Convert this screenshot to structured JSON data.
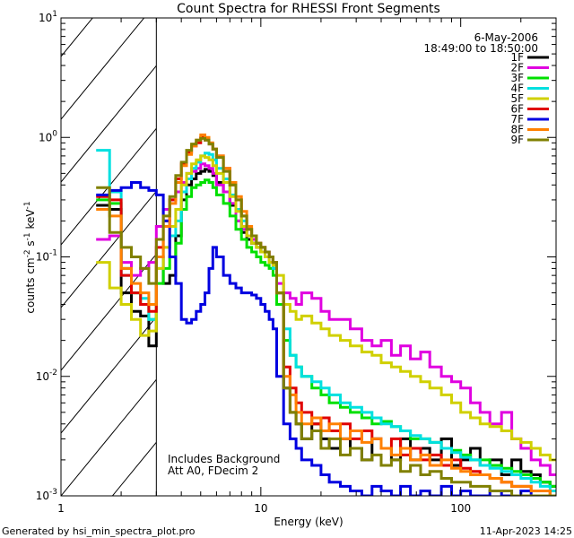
{
  "chart_data": {
    "type": "line",
    "title": "Count Spectra for RHESSI Front Segments",
    "date": "6-May-2006",
    "time_range": "18:49:00 to 18:50:00",
    "xlabel": "Energy (keV)",
    "ylabel_parts": [
      "counts cm",
      "-2",
      " s",
      "-1",
      " keV",
      "-1"
    ],
    "xscale": "log",
    "yscale": "log",
    "xlim": [
      1,
      300
    ],
    "ylim": [
      0.001,
      10
    ],
    "x_ticks": [
      {
        "value": 1,
        "label": "1"
      },
      {
        "value": 10,
        "label": "10"
      },
      {
        "value": 100,
        "label": "100"
      }
    ],
    "y_ticks": [
      {
        "value": 0.001,
        "base": "10",
        "exp": "-3"
      },
      {
        "value": 0.01,
        "base": "10",
        "exp": "-2"
      },
      {
        "value": 0.1,
        "base": "10",
        "exp": "-1"
      },
      {
        "value": 1,
        "base": "10",
        "exp": "0"
      },
      {
        "value": 10,
        "base": "10",
        "exp": "1"
      }
    ],
    "shaded_region": {
      "x_from": 1,
      "x_to": 3
    },
    "annotations": [
      "Includes Background",
      "Att A0, FDecim 2"
    ],
    "footer_left": "Generated by hsi_min_spectra_plot.pro",
    "footer_right": "11-Apr-2023 14:25",
    "series": [
      {
        "name": "1F",
        "color": "#000000",
        "x": [
          1.5,
          1.75,
          2,
          2.25,
          2.5,
          2.75,
          3,
          3.25,
          3.5,
          3.75,
          4,
          4.25,
          4.5,
          4.75,
          5,
          5.25,
          5.5,
          5.75,
          6,
          6.5,
          7,
          7.5,
          8,
          8.5,
          9,
          9.5,
          10,
          10.5,
          11,
          11.5,
          12,
          13,
          14,
          15,
          16,
          18,
          20,
          22,
          25,
          28,
          32,
          36,
          40,
          45,
          50,
          56,
          63,
          70,
          80,
          90,
          100,
          112,
          125,
          140,
          160,
          180,
          200,
          225,
          250,
          280
        ],
        "y": [
          0.27,
          0.25,
          0.05,
          0.035,
          0.032,
          0.018,
          0.1,
          0.06,
          0.07,
          0.15,
          0.3,
          0.4,
          0.45,
          0.5,
          0.52,
          0.54,
          0.52,
          0.48,
          0.42,
          0.35,
          0.27,
          0.2,
          0.16,
          0.14,
          0.13,
          0.12,
          0.11,
          0.11,
          0.1,
          0.09,
          0.05,
          0.008,
          0.005,
          0.004,
          0.003,
          0.004,
          0.003,
          0.0025,
          0.003,
          0.0025,
          0.002,
          0.003,
          0.0025,
          0.002,
          0.003,
          0.002,
          0.0025,
          0.002,
          0.003,
          0.0018,
          0.002,
          0.0025,
          0.0018,
          0.002,
          0.0015,
          0.002,
          0.0016,
          0.0015,
          0.0013,
          0.0012
        ]
      },
      {
        "name": "2F",
        "color": "#e000e0",
        "x": [
          1.5,
          1.75,
          2,
          2.25,
          2.5,
          2.75,
          3,
          3.25,
          3.5,
          3.75,
          4,
          4.25,
          4.5,
          4.75,
          5,
          5.25,
          5.5,
          5.75,
          6,
          6.5,
          7,
          7.5,
          8,
          8.5,
          9,
          9.5,
          10,
          10.5,
          11,
          11.5,
          12,
          13,
          14,
          15,
          16,
          18,
          20,
          22,
          25,
          28,
          32,
          36,
          40,
          45,
          50,
          56,
          63,
          70,
          80,
          90,
          100,
          112,
          125,
          140,
          160,
          180,
          200,
          225,
          250,
          280
        ],
        "y": [
          0.14,
          0.15,
          0.09,
          0.07,
          0.08,
          0.09,
          0.18,
          0.25,
          0.3,
          0.35,
          0.42,
          0.5,
          0.52,
          0.55,
          0.6,
          0.58,
          0.55,
          0.5,
          0.4,
          0.35,
          0.28,
          0.2,
          0.17,
          0.15,
          0.14,
          0.13,
          0.12,
          0.11,
          0.1,
          0.08,
          0.06,
          0.05,
          0.045,
          0.04,
          0.05,
          0.045,
          0.035,
          0.03,
          0.03,
          0.025,
          0.02,
          0.018,
          0.02,
          0.015,
          0.018,
          0.014,
          0.016,
          0.012,
          0.01,
          0.009,
          0.008,
          0.006,
          0.005,
          0.004,
          0.005,
          0.003,
          0.0025,
          0.002,
          0.0018,
          0.0015
        ]
      },
      {
        "name": "3F",
        "color": "#00e000",
        "x": [
          1.5,
          1.75,
          2,
          2.25,
          2.5,
          2.75,
          3,
          3.25,
          3.5,
          3.75,
          4,
          4.25,
          4.5,
          4.75,
          5,
          5.25,
          5.5,
          5.75,
          6,
          6.5,
          7,
          7.5,
          8,
          8.5,
          9,
          9.5,
          10,
          10.5,
          11,
          11.5,
          12,
          13,
          14,
          15,
          16,
          18,
          20,
          22,
          25,
          28,
          32,
          36,
          40,
          45,
          50,
          56,
          63,
          70,
          80,
          90,
          100,
          112,
          125,
          140,
          160,
          180,
          200,
          225,
          250,
          280
        ],
        "y": [
          0.3,
          0.28,
          0.08,
          0.05,
          0.04,
          0.03,
          0.06,
          0.08,
          0.1,
          0.13,
          0.25,
          0.32,
          0.38,
          0.4,
          0.42,
          0.44,
          0.42,
          0.38,
          0.33,
          0.28,
          0.22,
          0.17,
          0.14,
          0.12,
          0.11,
          0.1,
          0.09,
          0.085,
          0.08,
          0.07,
          0.04,
          0.02,
          0.015,
          0.012,
          0.01,
          0.008,
          0.007,
          0.006,
          0.0055,
          0.005,
          0.0045,
          0.004,
          0.0042,
          0.0038,
          0.0035,
          0.003,
          0.003,
          0.0028,
          0.0025,
          0.0024,
          0.0022,
          0.002,
          0.002,
          0.0018,
          0.0017,
          0.0016,
          0.0015,
          0.0014,
          0.0013,
          0.0012
        ]
      },
      {
        "name": "4F",
        "color": "#00e0e0",
        "x": [
          1.5,
          1.75,
          2,
          2.25,
          2.5,
          2.75,
          3,
          3.25,
          3.5,
          3.75,
          4,
          4.25,
          4.5,
          4.75,
          5,
          5.25,
          5.5,
          5.75,
          6,
          6.5,
          7,
          7.5,
          8,
          8.5,
          9,
          9.5,
          10,
          10.5,
          11,
          11.5,
          12,
          13,
          14,
          15,
          16,
          18,
          20,
          22,
          25,
          28,
          32,
          36,
          40,
          45,
          50,
          56,
          63,
          70,
          80,
          90,
          100,
          112,
          125,
          140,
          160,
          180,
          200,
          225,
          250,
          280
        ],
        "y": [
          0.78,
          0.35,
          0.07,
          0.05,
          0.045,
          0.03,
          0.08,
          0.12,
          0.15,
          0.2,
          0.35,
          0.45,
          0.55,
          0.62,
          0.7,
          0.74,
          0.72,
          0.65,
          0.55,
          0.45,
          0.33,
          0.25,
          0.2,
          0.17,
          0.15,
          0.13,
          0.12,
          0.1,
          0.09,
          0.08,
          0.05,
          0.025,
          0.015,
          0.012,
          0.01,
          0.009,
          0.008,
          0.007,
          0.006,
          0.0055,
          0.005,
          0.0045,
          0.004,
          0.0038,
          0.0035,
          0.0032,
          0.003,
          0.0028,
          0.0025,
          0.0023,
          0.0021,
          0.002,
          0.0018,
          0.0017,
          0.0016,
          0.0015,
          0.0014,
          0.0013,
          0.0012,
          0.0011
        ]
      },
      {
        "name": "5F",
        "color": "#d0d000",
        "x": [
          1.5,
          1.75,
          2,
          2.25,
          2.5,
          2.75,
          3,
          3.25,
          3.5,
          3.75,
          4,
          4.25,
          4.5,
          4.75,
          5,
          5.25,
          5.5,
          5.75,
          6,
          6.5,
          7,
          7.5,
          8,
          8.5,
          9,
          9.5,
          10,
          10.5,
          11,
          11.5,
          12,
          13,
          14,
          15,
          16,
          18,
          20,
          22,
          25,
          28,
          32,
          36,
          40,
          45,
          50,
          56,
          63,
          70,
          80,
          90,
          100,
          112,
          125,
          140,
          160,
          180,
          200,
          225,
          250,
          280
        ],
        "y": [
          0.09,
          0.055,
          0.04,
          0.03,
          0.022,
          0.024,
          0.08,
          0.12,
          0.18,
          0.25,
          0.4,
          0.5,
          0.6,
          0.65,
          0.7,
          0.68,
          0.65,
          0.58,
          0.5,
          0.42,
          0.32,
          0.24,
          0.18,
          0.15,
          0.13,
          0.12,
          0.11,
          0.1,
          0.09,
          0.085,
          0.07,
          0.04,
          0.035,
          0.03,
          0.032,
          0.028,
          0.025,
          0.022,
          0.02,
          0.018,
          0.016,
          0.015,
          0.013,
          0.012,
          0.011,
          0.01,
          0.009,
          0.008,
          0.007,
          0.006,
          0.005,
          0.0045,
          0.004,
          0.0038,
          0.0035,
          0.003,
          0.0028,
          0.0025,
          0.0022,
          0.002
        ]
      },
      {
        "name": "6F",
        "color": "#e00000",
        "x": [
          1.5,
          1.75,
          2,
          2.25,
          2.5,
          2.75,
          3,
          3.25,
          3.5,
          3.75,
          4,
          4.25,
          4.5,
          4.75,
          5,
          5.25,
          5.5,
          5.75,
          6,
          6.5,
          7,
          7.5,
          8,
          8.5,
          9,
          9.5,
          10,
          10.5,
          11,
          11.5,
          12,
          13,
          14,
          15,
          16,
          18,
          20,
          22,
          25,
          28,
          32,
          36,
          40,
          45,
          50,
          56,
          63,
          70,
          80,
          90,
          100,
          112,
          125,
          140,
          160,
          180,
          200,
          225,
          250,
          280
        ],
        "y": [
          0.32,
          0.3,
          0.07,
          0.05,
          0.04,
          0.035,
          0.12,
          0.2,
          0.3,
          0.45,
          0.6,
          0.75,
          0.85,
          0.9,
          1.0,
          0.95,
          0.88,
          0.8,
          0.7,
          0.55,
          0.4,
          0.3,
          0.22,
          0.17,
          0.15,
          0.13,
          0.12,
          0.11,
          0.1,
          0.09,
          0.05,
          0.012,
          0.008,
          0.006,
          0.005,
          0.004,
          0.0045,
          0.0035,
          0.004,
          0.003,
          0.0035,
          0.003,
          0.0025,
          0.003,
          0.0022,
          0.0025,
          0.002,
          0.0022,
          0.0018,
          0.002,
          0.0017,
          0.0016,
          0.0015,
          0.0014,
          0.0013,
          0.0012,
          0.0012,
          0.0011,
          0.0011,
          0.001
        ]
      },
      {
        "name": "7F",
        "color": "#0000e0",
        "x": [
          1.5,
          1.75,
          2,
          2.25,
          2.5,
          2.75,
          3,
          3.25,
          3.5,
          3.75,
          4,
          4.25,
          4.5,
          4.75,
          5,
          5.25,
          5.5,
          5.75,
          6,
          6.5,
          7,
          7.5,
          8,
          8.5,
          9,
          9.5,
          10,
          10.5,
          11,
          11.5,
          12,
          13,
          14,
          15,
          16,
          18,
          20,
          22,
          25,
          28,
          32,
          36,
          40,
          45,
          50,
          56,
          63,
          70,
          80,
          90,
          100,
          112,
          125,
          140,
          160,
          180,
          200,
          225,
          250,
          280
        ],
        "y": [
          0.33,
          0.36,
          0.38,
          0.42,
          0.38,
          0.36,
          0.33,
          0.2,
          0.1,
          0.06,
          0.03,
          0.028,
          0.03,
          0.035,
          0.04,
          0.05,
          0.08,
          0.12,
          0.1,
          0.07,
          0.06,
          0.055,
          0.05,
          0.05,
          0.048,
          0.045,
          0.04,
          0.035,
          0.03,
          0.025,
          0.01,
          0.004,
          0.003,
          0.0025,
          0.002,
          0.0018,
          0.0015,
          0.0013,
          0.0012,
          0.0011,
          0.001,
          0.0012,
          0.0011,
          0.001,
          0.0012,
          0.001,
          0.0011,
          0.001,
          0.0012,
          0.001,
          0.0011,
          0.001,
          0.001,
          0.0011,
          0.001,
          0.001,
          0.0011,
          0.001,
          0.001,
          0.001
        ]
      },
      {
        "name": "8F",
        "color": "#ff8000",
        "x": [
          1.5,
          1.75,
          2,
          2.25,
          2.5,
          2.75,
          3,
          3.25,
          3.5,
          3.75,
          4,
          4.25,
          4.5,
          4.75,
          5,
          5.25,
          5.5,
          5.75,
          6,
          6.5,
          7,
          7.5,
          8,
          8.5,
          9,
          9.5,
          10,
          10.5,
          11,
          11.5,
          12,
          13,
          14,
          15,
          16,
          18,
          20,
          22,
          25,
          28,
          32,
          36,
          40,
          45,
          50,
          56,
          63,
          70,
          80,
          90,
          100,
          112,
          125,
          140,
          160,
          180,
          200,
          225,
          250,
          280
        ],
        "y": [
          0.25,
          0.22,
          0.08,
          0.06,
          0.05,
          0.04,
          0.1,
          0.18,
          0.28,
          0.42,
          0.58,
          0.72,
          0.85,
          0.95,
          1.05,
          1.0,
          0.9,
          0.8,
          0.7,
          0.55,
          0.42,
          0.32,
          0.24,
          0.18,
          0.15,
          0.13,
          0.12,
          0.11,
          0.1,
          0.09,
          0.05,
          0.01,
          0.007,
          0.005,
          0.004,
          0.0045,
          0.0035,
          0.004,
          0.003,
          0.0035,
          0.0028,
          0.003,
          0.0025,
          0.0022,
          0.0025,
          0.002,
          0.0022,
          0.0018,
          0.002,
          0.0017,
          0.0016,
          0.0015,
          0.0015,
          0.0014,
          0.0013,
          0.0012,
          0.0012,
          0.0011,
          0.0011,
          0.001
        ]
      },
      {
        "name": "9F",
        "color": "#808000",
        "x": [
          1.5,
          1.75,
          2,
          2.25,
          2.5,
          2.75,
          3,
          3.25,
          3.5,
          3.75,
          4,
          4.25,
          4.5,
          4.75,
          5,
          5.25,
          5.5,
          5.75,
          6,
          6.5,
          7,
          7.5,
          8,
          8.5,
          9,
          9.5,
          10,
          10.5,
          11,
          11.5,
          12,
          13,
          14,
          15,
          16,
          18,
          20,
          22,
          25,
          28,
          32,
          36,
          40,
          45,
          50,
          56,
          63,
          70,
          80,
          90,
          100,
          112,
          125,
          140,
          160,
          180,
          200,
          225,
          250,
          280
        ],
        "y": [
          0.38,
          0.16,
          0.12,
          0.1,
          0.08,
          0.06,
          0.14,
          0.22,
          0.32,
          0.48,
          0.62,
          0.78,
          0.88,
          0.95,
          0.98,
          0.95,
          0.88,
          0.8,
          0.68,
          0.52,
          0.4,
          0.3,
          0.22,
          0.17,
          0.15,
          0.13,
          0.12,
          0.11,
          0.1,
          0.09,
          0.05,
          0.008,
          0.005,
          0.004,
          0.003,
          0.0035,
          0.0025,
          0.003,
          0.0022,
          0.0025,
          0.002,
          0.0022,
          0.0018,
          0.002,
          0.0016,
          0.0018,
          0.0015,
          0.0016,
          0.0014,
          0.0013,
          0.0013,
          0.0012,
          0.0012,
          0.0011,
          0.0011,
          0.001,
          0.001,
          0.001,
          0.001,
          0.001
        ]
      }
    ]
  }
}
